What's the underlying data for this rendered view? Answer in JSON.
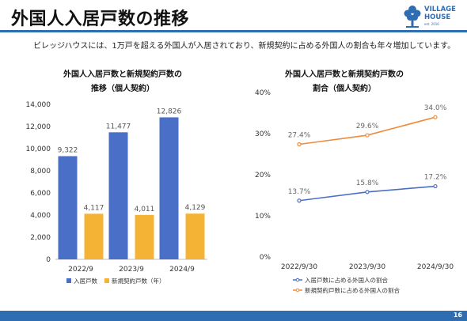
{
  "header": {
    "title": "外国人入居戸数の推移",
    "subtitle": "ビレッジハウスには、1万戸を超える外国人が入居されており、新規契約に占める外国人の割合も年々増加しています。",
    "logo_line1": "VILLAGE",
    "logo_line2": "HOUSE",
    "logo_sub": "est. 2016"
  },
  "page_number": "16",
  "chart_data": [
    {
      "type": "bar",
      "title_line1": "外国人入居戸数と新規契約戸数の",
      "title_line2": "推移（個人契約）",
      "categories": [
        "2022/9",
        "2023/9",
        "2024/9"
      ],
      "series": [
        {
          "name": "入居戸数",
          "values": [
            9322,
            11477,
            12826
          ],
          "labels": [
            "9,322",
            "11,477",
            "12,826"
          ],
          "color": "#4a6fc7"
        },
        {
          "name": "新規契約戸数（年）",
          "values": [
            4117,
            4011,
            4129
          ],
          "labels": [
            "4,117",
            "4,011",
            "4,129"
          ],
          "color": "#f5b335"
        }
      ],
      "ylim": [
        0,
        14000
      ],
      "yticks": [
        0,
        2000,
        4000,
        6000,
        8000,
        10000,
        12000,
        14000
      ],
      "ytick_labels": [
        "0",
        "2,000",
        "4,000",
        "6,000",
        "8,000",
        "10,000",
        "12,000",
        "14,000"
      ],
      "grid": false,
      "legend": "bottom"
    },
    {
      "type": "line",
      "title_line1": "外国人入居戸数と新規契約戸数の",
      "title_line2": "割合（個人契約）",
      "categories": [
        "2022/9/30",
        "2023/9/30",
        "2024/9/30"
      ],
      "series": [
        {
          "name": "入居戸数に占める外国人の割合",
          "values": [
            13.7,
            15.8,
            17.2
          ],
          "labels": [
            "13.7%",
            "15.8%",
            "17.2%"
          ],
          "color": "#4a6fc7"
        },
        {
          "name": "新規契約戸数に占める外国人の割合",
          "values": [
            27.4,
            29.6,
            34.0
          ],
          "labels": [
            "27.4%",
            "29.6%",
            "34.0%"
          ],
          "color": "#ef8a3a"
        }
      ],
      "ylim": [
        0,
        40
      ],
      "yticks": [
        0,
        10,
        20,
        30,
        40
      ],
      "ytick_labels": [
        "0%",
        "10%",
        "20%",
        "30%",
        "40%"
      ],
      "grid": false,
      "legend": "bottom"
    }
  ]
}
